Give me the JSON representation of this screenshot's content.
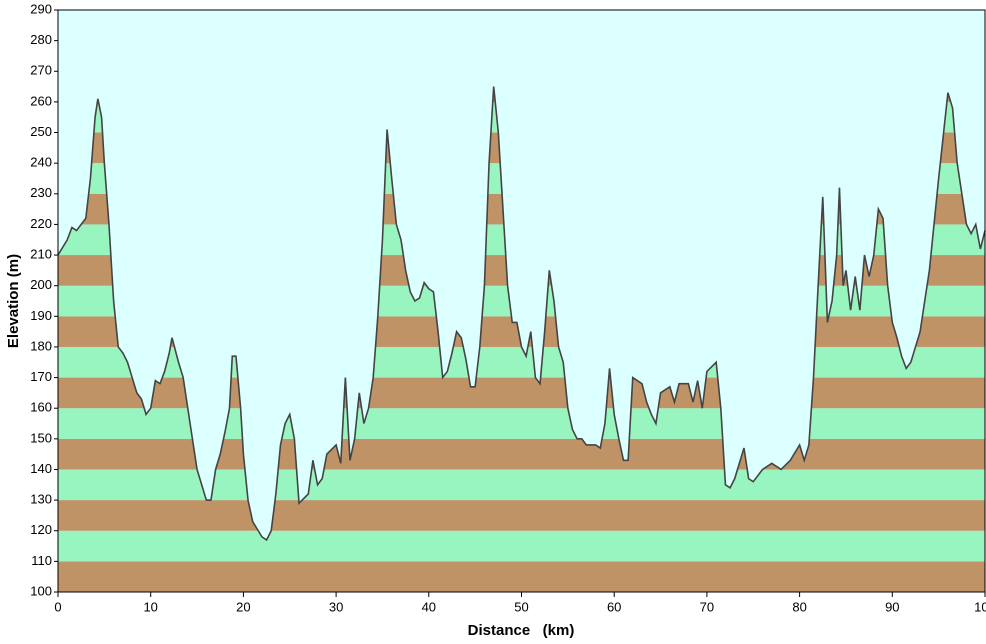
{
  "chart_data": {
    "type": "area",
    "x_label": "Distance   (km)",
    "y_label": "Elevation (m)",
    "x": [
      0,
      1,
      1.5,
      2,
      3,
      3.5,
      4,
      4.3,
      4.7,
      5,
      5.5,
      6,
      6.5,
      7,
      7.5,
      8,
      8.5,
      9,
      9.5,
      10,
      10.5,
      11,
      11.5,
      12,
      12.3,
      13,
      13.5,
      14,
      14.5,
      15,
      15.5,
      16,
      16.5,
      17,
      17.5,
      18,
      18.5,
      18.8,
      19.2,
      19.7,
      20,
      20.5,
      21,
      22,
      22.5,
      23,
      23.5,
      24,
      24.5,
      25,
      25.5,
      26,
      27,
      27.5,
      28,
      28.5,
      29,
      30,
      30.5,
      31,
      31.5,
      32,
      32.5,
      33,
      33.5,
      34,
      34.5,
      35,
      35.5,
      36,
      36.5,
      37,
      37.5,
      38,
      38.5,
      39,
      39.5,
      40,
      40.5,
      41,
      41.5,
      42,
      42.5,
      43,
      43.5,
      44,
      44.5,
      45,
      45.5,
      46,
      46.5,
      47,
      47.5,
      48,
      48.5,
      49,
      49.5,
      50,
      50.5,
      51,
      51.5,
      52,
      52.5,
      53,
      53.5,
      54,
      54.5,
      55,
      55.5,
      56,
      56.5,
      57,
      58,
      58.5,
      59,
      59.5,
      60,
      60.5,
      61,
      61.5,
      62,
      63,
      63.5,
      64,
      64.5,
      65,
      66,
      66.5,
      67,
      68,
      68.5,
      69,
      69.5,
      70,
      71,
      71.5,
      72,
      72.5,
      73,
      74,
      74.5,
      75,
      76,
      77,
      78,
      79,
      80,
      80.5,
      81,
      81.5,
      82,
      82.5,
      83,
      83.5,
      84,
      84.3,
      84.7,
      85,
      85.5,
      86,
      86.5,
      87,
      87.5,
      88,
      88.5,
      89,
      89.5,
      90,
      90.5,
      91,
      91.5,
      92,
      92.5,
      93,
      94,
      95,
      96,
      96.5,
      97,
      98,
      98.5,
      99,
      99.5,
      100
    ],
    "values": [
      210,
      215,
      219,
      218,
      222,
      235,
      255,
      261,
      255,
      240,
      220,
      195,
      180,
      178,
      175,
      170,
      165,
      163,
      158,
      160,
      169,
      168,
      172,
      178,
      183,
      175,
      170,
      160,
      150,
      140,
      135,
      130,
      130,
      140,
      145,
      152,
      160,
      177,
      177,
      160,
      145,
      130,
      123,
      118,
      117,
      120,
      132,
      148,
      155,
      158,
      150,
      129,
      132,
      143,
      135,
      137,
      145,
      148,
      142,
      170,
      143,
      150,
      165,
      155,
      160,
      170,
      190,
      215,
      251,
      235,
      220,
      215,
      205,
      198,
      195,
      196,
      201,
      199,
      198,
      185,
      170,
      172,
      178,
      185,
      183,
      176,
      167,
      167,
      180,
      200,
      240,
      265,
      250,
      225,
      200,
      188,
      188,
      180,
      177,
      185,
      170,
      168,
      185,
      205,
      195,
      180,
      175,
      160,
      153,
      150,
      150,
      148,
      148,
      147,
      155,
      173,
      158,
      150,
      143,
      143,
      170,
      168,
      162,
      158,
      155,
      165,
      167,
      162,
      168,
      168,
      162,
      169,
      160,
      172,
      175,
      160,
      135,
      134,
      137,
      147,
      137,
      136,
      140,
      142,
      140,
      143,
      148,
      143,
      148,
      170,
      200,
      229,
      188,
      195,
      210,
      232,
      200,
      205,
      192,
      203,
      192,
      210,
      203,
      210,
      225,
      222,
      200,
      188,
      183,
      177,
      173,
      175,
      180,
      185,
      205,
      235,
      263,
      258,
      240,
      220,
      217,
      220,
      212,
      218
    ],
    "line_color": "#444444",
    "band_colors": [
      "#bf9366",
      "#99f5c0"
    ],
    "background": "#dcffff",
    "xlim": [
      0,
      100
    ],
    "ylim": [
      100,
      290
    ],
    "xticks": [
      0,
      10,
      20,
      30,
      40,
      50,
      60,
      70,
      80,
      90,
      100
    ],
    "yticks": [
      100,
      110,
      120,
      130,
      140,
      150,
      160,
      170,
      180,
      190,
      200,
      210,
      220,
      230,
      240,
      250,
      260,
      270,
      280,
      290
    ]
  }
}
